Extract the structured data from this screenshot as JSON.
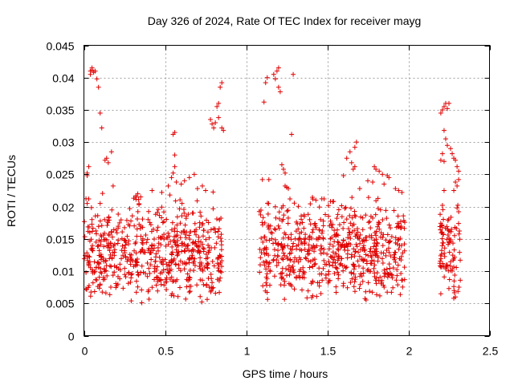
{
  "chart_data": {
    "type": "scatter",
    "title": "Day 326 of 2024, Rate Of TEC Index for receiver mayg",
    "xlabel": "GPS time / hours",
    "ylabel": "ROTI / TECUs",
    "xlim": [
      0,
      2.5
    ],
    "ylim": [
      0,
      0.045
    ],
    "xticks": [
      0,
      0.5,
      1,
      1.5,
      2,
      2.5
    ],
    "xtick_labels": [
      "0",
      "0.5",
      "1",
      "1.5",
      "2",
      "2.5"
    ],
    "yticks": [
      0,
      0.005,
      0.01,
      0.015,
      0.02,
      0.025,
      0.03,
      0.035,
      0.04,
      0.045
    ],
    "ytick_labels": [
      "0",
      "0.005",
      "0.01",
      "0.015",
      "0.02",
      "0.025",
      "0.03",
      "0.035",
      "0.04",
      "0.045"
    ],
    "grid": true,
    "marker": "+",
    "color": "#e00000",
    "series": [
      {
        "name": "ROTI",
        "clusters": [
          {
            "x_range": [
              0.0,
              0.85
            ],
            "y_range": [
              0.0045,
              0.0225
            ],
            "y_mode": 0.012,
            "count": 620
          },
          {
            "x_range": [
              1.08,
              1.98
            ],
            "y_range": [
              0.005,
              0.022
            ],
            "y_mode": 0.013,
            "count": 640
          },
          {
            "x_range": [
              2.19,
              2.32
            ],
            "y_range": [
              0.006,
              0.0205
            ],
            "y_mode": 0.0125,
            "count": 90
          }
        ],
        "points": [
          [
            0.02,
            0.0205
          ],
          [
            0.02,
            0.0248
          ],
          [
            0.02,
            0.0252
          ],
          [
            0.03,
            0.0262
          ],
          [
            0.04,
            0.0405
          ],
          [
            0.04,
            0.041
          ],
          [
            0.05,
            0.0415
          ],
          [
            0.05,
            0.0412
          ],
          [
            0.06,
            0.0408
          ],
          [
            0.07,
            0.041
          ],
          [
            0.08,
            0.0398
          ],
          [
            0.09,
            0.0385
          ],
          [
            0.1,
            0.0345
          ],
          [
            0.11,
            0.0322
          ],
          [
            0.13,
            0.0272
          ],
          [
            0.14,
            0.0275
          ],
          [
            0.15,
            0.0268
          ],
          [
            0.17,
            0.0285
          ],
          [
            0.1,
            0.0205
          ],
          [
            0.18,
            0.0232
          ],
          [
            0.35,
            0.0215
          ],
          [
            0.42,
            0.0225
          ],
          [
            0.48,
            0.0222
          ],
          [
            0.52,
            0.0232
          ],
          [
            0.53,
            0.0218
          ],
          [
            0.54,
            0.0245
          ],
          [
            0.55,
            0.0252
          ],
          [
            0.56,
            0.0262
          ],
          [
            0.56,
            0.028
          ],
          [
            0.55,
            0.0312
          ],
          [
            0.56,
            0.0315
          ],
          [
            0.57,
            0.0238
          ],
          [
            0.6,
            0.0235
          ],
          [
            0.62,
            0.024
          ],
          [
            0.65,
            0.0245
          ],
          [
            0.68,
            0.025
          ],
          [
            0.7,
            0.0228
          ],
          [
            0.73,
            0.0232
          ],
          [
            0.75,
            0.0225
          ],
          [
            0.78,
            0.0335
          ],
          [
            0.79,
            0.0328
          ],
          [
            0.8,
            0.0322
          ],
          [
            0.81,
            0.033
          ],
          [
            0.82,
            0.0355
          ],
          [
            0.83,
            0.036
          ],
          [
            0.84,
            0.0385
          ],
          [
            0.85,
            0.0392
          ],
          [
            0.83,
            0.0338
          ],
          [
            0.85,
            0.0322
          ],
          [
            0.86,
            0.0318
          ],
          [
            1.11,
            0.0362
          ],
          [
            1.12,
            0.0392
          ],
          [
            1.13,
            0.04
          ],
          [
            1.14,
            0.0242
          ],
          [
            1.1,
            0.0242
          ],
          [
            1.17,
            0.0405
          ],
          [
            1.18,
            0.0398
          ],
          [
            1.19,
            0.041
          ],
          [
            1.2,
            0.0415
          ],
          [
            1.2,
            0.0385
          ],
          [
            1.21,
            0.0378
          ],
          [
            1.22,
            0.0265
          ],
          [
            1.23,
            0.0258
          ],
          [
            1.24,
            0.0252
          ],
          [
            1.24,
            0.0232
          ],
          [
            1.25,
            0.023
          ],
          [
            1.26,
            0.0228
          ],
          [
            1.27,
            0.0212
          ],
          [
            1.28,
            0.0312
          ],
          [
            1.29,
            0.0405
          ],
          [
            1.43,
            0.021
          ],
          [
            1.48,
            0.0212
          ],
          [
            1.52,
            0.0208
          ],
          [
            1.6,
            0.0248
          ],
          [
            1.62,
            0.0275
          ],
          [
            1.64,
            0.0285
          ],
          [
            1.65,
            0.0268
          ],
          [
            1.66,
            0.0258
          ],
          [
            1.67,
            0.0262
          ],
          [
            1.67,
            0.0292
          ],
          [
            1.68,
            0.03
          ],
          [
            1.7,
            0.0228
          ],
          [
            1.75,
            0.024
          ],
          [
            1.79,
            0.0262
          ],
          [
            1.8,
            0.0258
          ],
          [
            1.82,
            0.0255
          ],
          [
            1.84,
            0.025
          ],
          [
            1.87,
            0.0248
          ],
          [
            1.88,
            0.0245
          ],
          [
            1.92,
            0.0228
          ],
          [
            1.94,
            0.0225
          ],
          [
            1.96,
            0.0222
          ],
          [
            1.78,
            0.0238
          ],
          [
            1.85,
            0.0235
          ],
          [
            2.2,
            0.0345
          ],
          [
            2.21,
            0.035
          ],
          [
            2.22,
            0.0355
          ],
          [
            2.23,
            0.036
          ],
          [
            2.24,
            0.0352
          ],
          [
            2.25,
            0.036
          ],
          [
            2.22,
            0.0318
          ],
          [
            2.23,
            0.0305
          ],
          [
            2.24,
            0.0295
          ],
          [
            2.21,
            0.0282
          ],
          [
            2.2,
            0.0272
          ],
          [
            2.22,
            0.027
          ],
          [
            2.26,
            0.029
          ],
          [
            2.27,
            0.0282
          ],
          [
            2.28,
            0.0275
          ],
          [
            2.29,
            0.0272
          ],
          [
            2.3,
            0.0262
          ],
          [
            2.31,
            0.0255
          ],
          [
            2.29,
            0.0238
          ],
          [
            2.3,
            0.0232
          ],
          [
            2.31,
            0.0242
          ],
          [
            2.28,
            0.0225
          ],
          [
            2.22,
            0.0225
          ],
          [
            2.21,
            0.0202
          ],
          [
            2.3,
            0.0198
          ],
          [
            2.31,
            0.0192
          ],
          [
            2.28,
            0.0058
          ],
          [
            2.29,
            0.006
          ],
          [
            2.2,
            0.0065
          ]
        ]
      }
    ]
  }
}
